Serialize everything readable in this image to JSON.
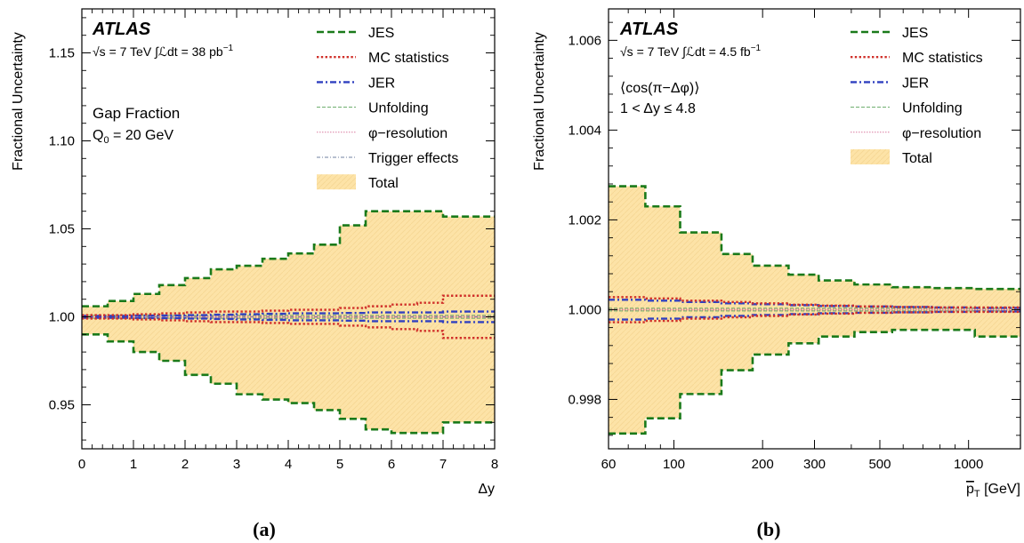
{
  "figure": {
    "panels": [
      {
        "id": "a",
        "caption": "(a)",
        "experiment": "ATLAS",
        "lumi_sqrt_s": "√s = 7 TeV ∫",
        "lumi_script": "ℒ",
        "lumi_value": "dt = 38 pb",
        "lumi_exp": "−1",
        "notes": [
          "Gap Fraction",
          "Q",
          "0",
          " = 20 GeV"
        ]
      },
      {
        "id": "b",
        "caption": "(b)",
        "experiment": "ATLAS",
        "lumi_sqrt_s": "√s = 7 TeV ∫",
        "lumi_script": "ℒ",
        "lumi_value": "dt = 4.5 fb",
        "lumi_exp": "−1",
        "notes": [
          "⟨cos(π−Δφ)⟩",
          "1 < Δy ≤ 4.8"
        ]
      }
    ]
  },
  "chart_data": [
    {
      "type": "line",
      "panel": "a",
      "xlabel": "Δy",
      "ylabel": "Fractional Uncertainty",
      "xlim": [
        0,
        8
      ],
      "ylim": [
        0.925,
        1.175
      ],
      "xscale": "linear",
      "x_ticks": [
        0,
        1,
        2,
        3,
        4,
        5,
        6,
        7,
        8
      ],
      "x_tick_labels": [
        "0",
        "1",
        "2",
        "3",
        "4",
        "5",
        "6",
        "7",
        "8"
      ],
      "y_ticks": [
        0.95,
        1.0,
        1.05,
        1.1,
        1.15
      ],
      "y_tick_labels": [
        "0.95",
        "1.00",
        "1.05",
        "1.10",
        "1.15"
      ],
      "grid": false,
      "legend_position": "top-right",
      "legend": [
        {
          "label": "JES",
          "color": "#1a7a1a",
          "style": "dash"
        },
        {
          "label": "MC statistics",
          "color": "#d0302a",
          "style": "dot"
        },
        {
          "label": "JER",
          "color": "#3040c0",
          "style": "dashdot"
        },
        {
          "label": "Unfolding",
          "color": "#66aa66",
          "style": "thin-dash"
        },
        {
          "label": "φ−resolution",
          "color": "#d97aa0",
          "style": "thin-dot"
        },
        {
          "label": "Trigger effects",
          "color": "#7080a0",
          "style": "thin-dashdot"
        },
        {
          "label": "Total",
          "color": "#fde3a7",
          "style": "band"
        }
      ],
      "bin_edges": [
        0,
        0.5,
        1,
        1.5,
        2,
        2.5,
        3,
        3.5,
        4,
        4.5,
        5,
        5.5,
        6,
        6.5,
        7,
        7.5,
        8
      ],
      "series": [
        {
          "name": "Total",
          "kind": "band",
          "up": [
            1.006,
            1.009,
            1.013,
            1.018,
            1.022,
            1.027,
            1.029,
            1.033,
            1.036,
            1.041,
            1.052,
            1.06,
            1.06,
            1.06,
            1.057,
            1.057
          ],
          "down": [
            0.99,
            0.986,
            0.98,
            0.975,
            0.967,
            0.962,
            0.956,
            0.953,
            0.951,
            0.947,
            0.942,
            0.936,
            0.934,
            0.934,
            0.94,
            0.94
          ]
        },
        {
          "name": "JES",
          "kind": "pair",
          "up": [
            1.006,
            1.009,
            1.013,
            1.018,
            1.022,
            1.027,
            1.029,
            1.033,
            1.036,
            1.041,
            1.052,
            1.06,
            1.06,
            1.06,
            1.057,
            1.057
          ],
          "down": [
            0.99,
            0.986,
            0.98,
            0.975,
            0.967,
            0.962,
            0.956,
            0.953,
            0.951,
            0.947,
            0.942,
            0.936,
            0.934,
            0.934,
            0.94,
            0.94
          ]
        },
        {
          "name": "MC statistics",
          "kind": "pair",
          "up": [
            1.001,
            1.001,
            1.0015,
            1.002,
            1.0025,
            1.003,
            1.003,
            1.0035,
            1.004,
            1.004,
            1.005,
            1.006,
            1.007,
            1.008,
            1.012,
            1.012
          ],
          "down": [
            0.999,
            0.999,
            0.9985,
            0.998,
            0.9975,
            0.997,
            0.997,
            0.9965,
            0.996,
            0.996,
            0.995,
            0.994,
            0.993,
            0.992,
            0.988,
            0.988
          ]
        },
        {
          "name": "JER",
          "kind": "pair",
          "up": [
            1.0005,
            1.0005,
            1.0007,
            1.0008,
            1.001,
            1.0012,
            1.0015,
            1.0017,
            1.002,
            1.002,
            1.0022,
            1.0025,
            1.0025,
            1.0025,
            1.003,
            1.003
          ],
          "down": [
            0.9995,
            0.9995,
            0.9993,
            0.9992,
            0.999,
            0.9988,
            0.9985,
            0.9983,
            0.998,
            0.998,
            0.9978,
            0.9975,
            0.9975,
            0.9975,
            0.997,
            0.997
          ]
        },
        {
          "name": "Unfolding",
          "kind": "pair",
          "up": [
            1.0008,
            1.0008,
            1.0008,
            1.0008,
            1.0008,
            1.0008,
            1.0008,
            1.0008,
            1.0008,
            1.0008,
            1.0008,
            1.0008,
            1.0008,
            1.0008,
            1.0008,
            1.0008
          ],
          "down": [
            0.9992,
            0.9992,
            0.9992,
            0.9992,
            0.9992,
            0.9992,
            0.9992,
            0.9992,
            0.9992,
            0.9992,
            0.9992,
            0.9992,
            0.9992,
            0.9992,
            0.9992,
            0.9992
          ]
        },
        {
          "name": "φ−resolution",
          "kind": "pair",
          "up": [
            1.0003,
            1.0003,
            1.0003,
            1.0003,
            1.0003,
            1.0003,
            1.0003,
            1.0003,
            1.0003,
            1.0003,
            1.0003,
            1.0003,
            1.0003,
            1.0003,
            1.0003,
            1.0003
          ],
          "down": [
            0.9997,
            0.9997,
            0.9997,
            0.9997,
            0.9997,
            0.9997,
            0.9997,
            0.9997,
            0.9997,
            0.9997,
            0.9997,
            0.9997,
            0.9997,
            0.9997,
            0.9997,
            0.9997
          ]
        },
        {
          "name": "Trigger effects",
          "kind": "pair",
          "up": [
            1.0001,
            1.0001,
            1.0001,
            1.0001,
            1.0001,
            1.0001,
            1.0001,
            1.0001,
            1.0001,
            1.0001,
            1.0001,
            1.0001,
            1.0001,
            1.0001,
            1.0001,
            1.0001
          ],
          "down": [
            0.9999,
            0.9999,
            0.9999,
            0.9999,
            0.9999,
            0.9999,
            0.9999,
            0.9999,
            0.9999,
            0.9999,
            0.9999,
            0.9999,
            0.9999,
            0.9999,
            0.9999,
            0.9999
          ]
        }
      ]
    },
    {
      "type": "line",
      "panel": "b",
      "xlabel": "p_T [GeV]",
      "xlabel_main": "p",
      "xlabel_sub": "T",
      "xlabel_unit": " [GeV]",
      "ylabel": "Fractional Uncertainty",
      "xlim": [
        60,
        1500
      ],
      "ylim": [
        0.9969,
        1.0067
      ],
      "xscale": "log",
      "x_ticks": [
        60,
        100,
        200,
        300,
        500,
        1000
      ],
      "x_tick_labels": [
        "60",
        "100",
        "200",
        "300",
        "500",
        "1000"
      ],
      "y_ticks": [
        0.998,
        1.0,
        1.002,
        1.004,
        1.006
      ],
      "y_tick_labels": [
        "0.998",
        "1.000",
        "1.002",
        "1.004",
        "1.006"
      ],
      "grid": false,
      "legend_position": "top-right",
      "legend": [
        {
          "label": "JES",
          "color": "#1a7a1a",
          "style": "dash"
        },
        {
          "label": "MC statistics",
          "color": "#d0302a",
          "style": "dot"
        },
        {
          "label": "JER",
          "color": "#3040c0",
          "style": "dashdot"
        },
        {
          "label": "Unfolding",
          "color": "#66aa66",
          "style": "thin-dash"
        },
        {
          "label": "φ−resolution",
          "color": "#d97aa0",
          "style": "thin-dot"
        },
        {
          "label": "Total",
          "color": "#fde3a7",
          "style": "band"
        }
      ],
      "bin_edges": [
        60,
        80,
        105,
        145,
        185,
        245,
        310,
        410,
        550,
        750,
        1050,
        1500
      ],
      "series": [
        {
          "name": "Total",
          "kind": "band",
          "up": [
            1.00275,
            1.0023,
            1.00172,
            1.00124,
            1.00098,
            1.00078,
            1.00065,
            1.00056,
            1.0005,
            1.00048,
            1.00046
          ],
          "down": [
            0.99724,
            0.99758,
            0.99812,
            0.99865,
            0.999,
            0.99925,
            0.9994,
            0.9995,
            0.99955,
            0.99955,
            0.9994
          ]
        },
        {
          "name": "JES",
          "kind": "pair",
          "up": [
            1.00275,
            1.0023,
            1.00172,
            1.00124,
            1.00098,
            1.00078,
            1.00065,
            1.00056,
            1.0005,
            1.00048,
            1.00046
          ],
          "down": [
            0.99724,
            0.99758,
            0.99812,
            0.99865,
            0.999,
            0.99925,
            0.9994,
            0.9995,
            0.99955,
            0.99955,
            0.9994
          ]
        },
        {
          "name": "MC statistics",
          "kind": "pair",
          "up": [
            1.00028,
            1.00025,
            1.0002,
            1.00017,
            1.00014,
            1.00011,
            1.00009,
            1.00007,
            1.00006,
            1.00005,
            1.00005
          ],
          "down": [
            0.99972,
            0.99975,
            0.9998,
            0.99983,
            0.99986,
            0.99989,
            0.99991,
            0.99993,
            0.99994,
            0.99995,
            0.99995
          ]
        },
        {
          "name": "JER",
          "kind": "pair",
          "up": [
            1.00022,
            1.0002,
            1.00017,
            1.00014,
            1.00012,
            1.0001,
            1.00008,
            1.00007,
            1.00006,
            1.00005,
            1.00004
          ],
          "down": [
            0.99978,
            0.9998,
            0.99983,
            0.99986,
            0.99988,
            0.9999,
            0.99992,
            0.99993,
            0.99994,
            0.99995,
            0.99996
          ]
        },
        {
          "name": "Unfolding",
          "kind": "pair",
          "up": [
            1.00003,
            1.00003,
            1.00003,
            1.00003,
            1.00003,
            1.00003,
            1.00003,
            1.00003,
            1.00003,
            1.00003,
            1.00003
          ],
          "down": [
            0.99997,
            0.99997,
            0.99997,
            0.99997,
            0.99997,
            0.99997,
            0.99997,
            0.99997,
            0.99997,
            0.99997,
            0.99997
          ]
        },
        {
          "name": "φ−resolution",
          "kind": "pair",
          "up": [
            1.00001,
            1.00001,
            1.00001,
            1.00001,
            1.00001,
            1.00001,
            1.00001,
            1.00001,
            1.00001,
            1.00001,
            1.00001
          ],
          "down": [
            0.99999,
            0.99999,
            0.99999,
            0.99999,
            0.99999,
            0.99999,
            0.99999,
            0.99999,
            0.99999,
            0.99999,
            0.99999
          ]
        }
      ]
    }
  ]
}
